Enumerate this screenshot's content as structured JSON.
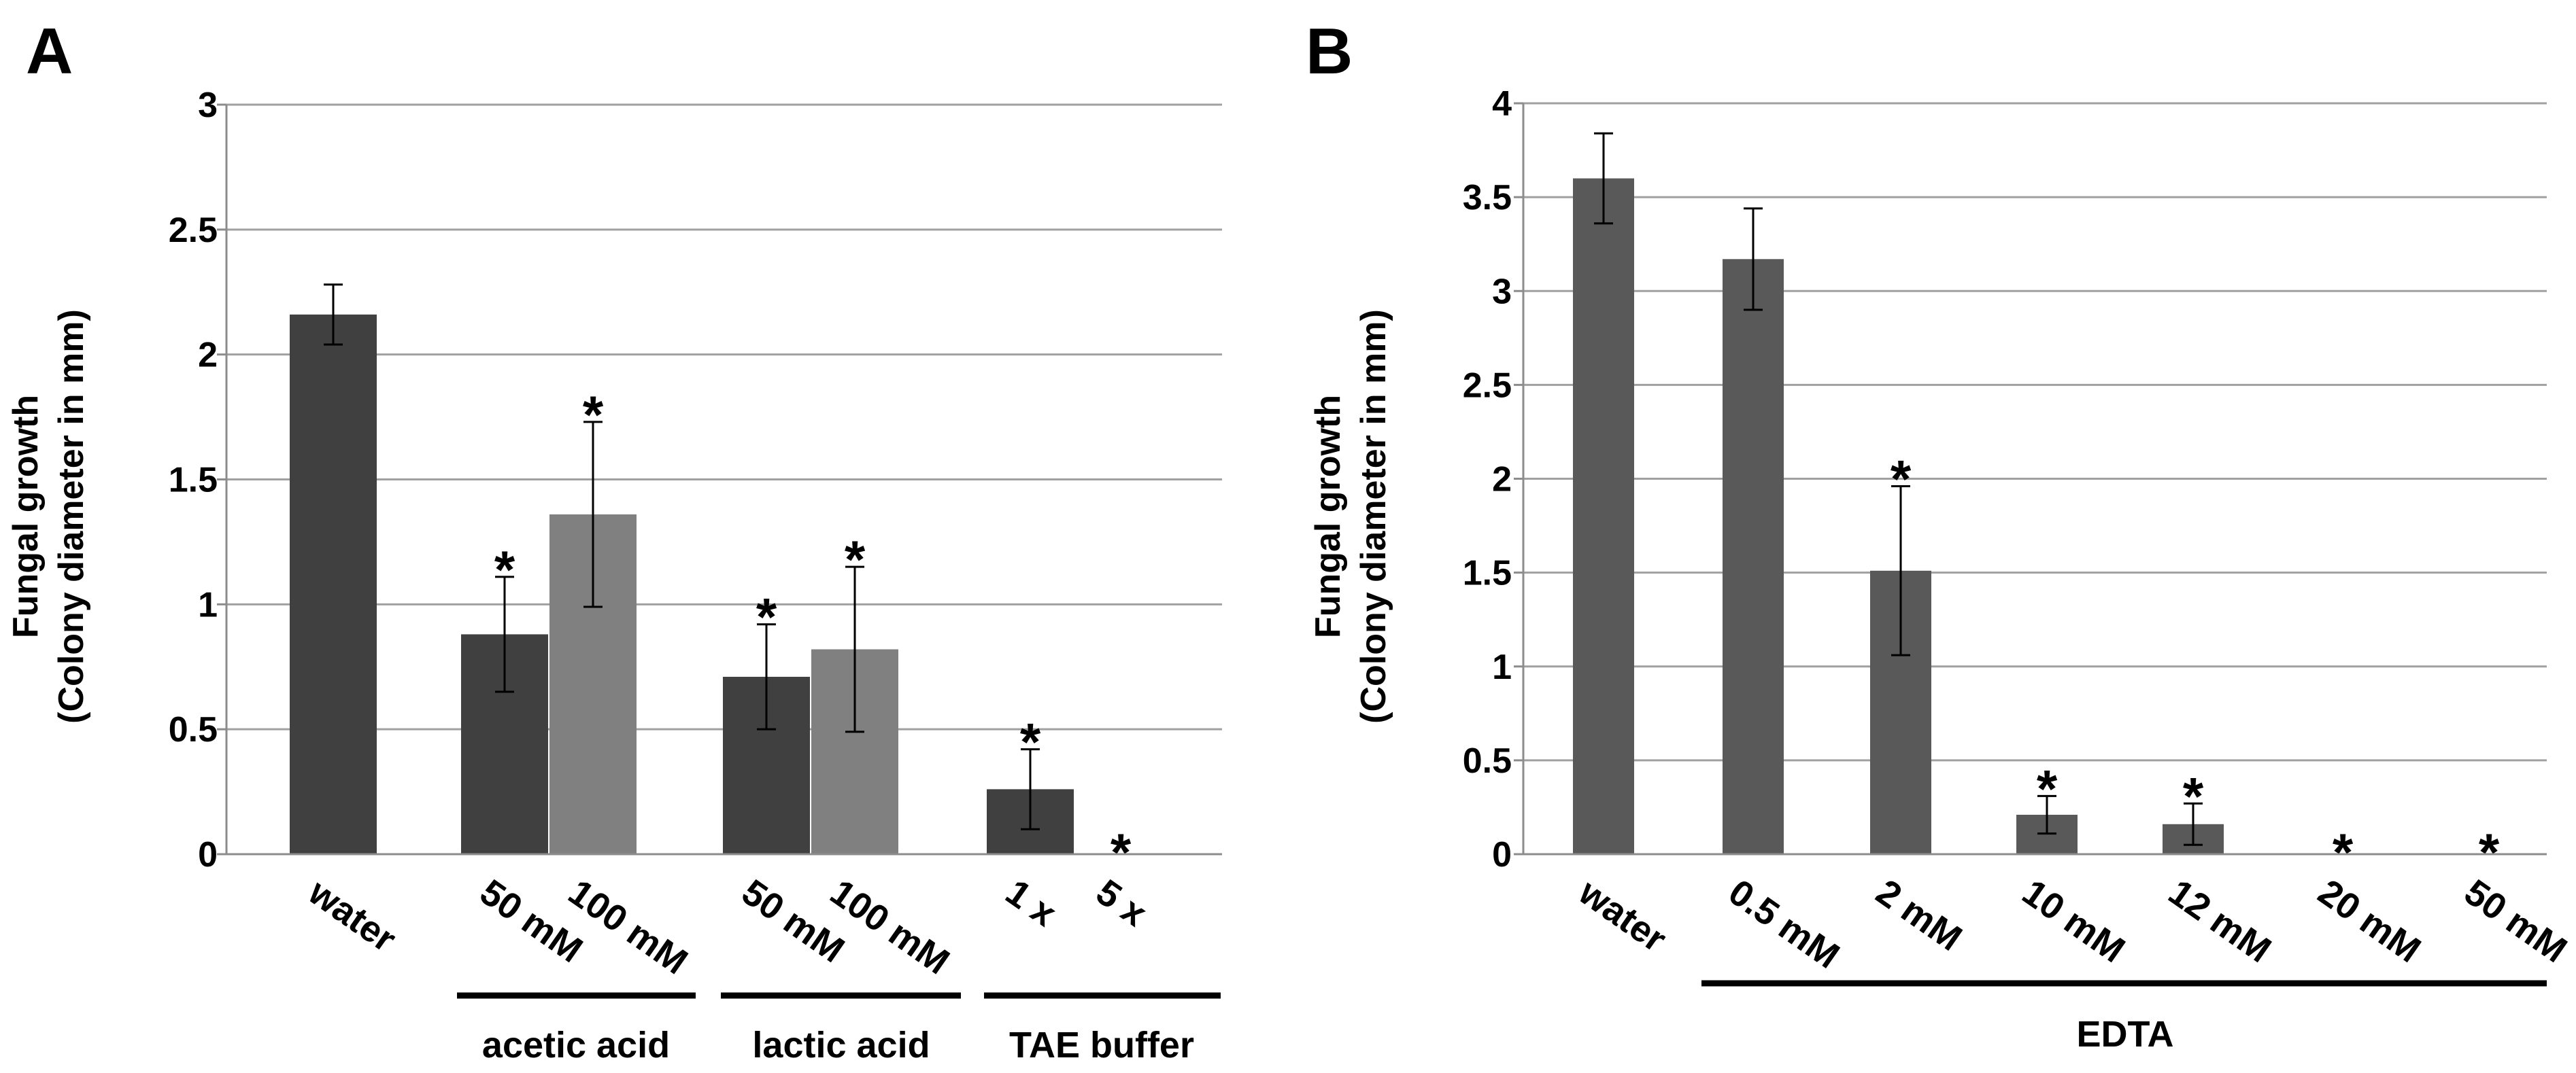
{
  "colors": {
    "dark": "#404040",
    "light": "#808080",
    "mid": "#595959",
    "grid": "#a0a0a0",
    "axis": "#8c8c8c",
    "ink": "#000000"
  },
  "chart_data": [
    {
      "type": "bar",
      "panel": "A",
      "ylabel_line1": "Fungal growth",
      "ylabel_line2": "(Colony diameter in mm)",
      "ylim": [
        0,
        3
      ],
      "yticks": [
        "0",
        "0.5",
        "1",
        "1.5",
        "2",
        "2.5",
        "3"
      ],
      "grid": true,
      "bars": [
        {
          "label": "water",
          "value": 2.16,
          "error": 0.12,
          "star": false,
          "shade": "dark"
        },
        {
          "label": "50 mM",
          "value": 0.88,
          "error": 0.23,
          "star": true,
          "shade": "dark"
        },
        {
          "label": "100 mM",
          "value": 1.36,
          "error": 0.37,
          "star": true,
          "shade": "light"
        },
        {
          "label": "50 mM",
          "value": 0.71,
          "error": 0.21,
          "star": true,
          "shade": "dark"
        },
        {
          "label": "100 mM",
          "value": 0.82,
          "error": 0.33,
          "star": true,
          "shade": "light"
        },
        {
          "label": "1 x",
          "value": 0.26,
          "error": 0.16,
          "star": true,
          "shade": "dark"
        },
        {
          "label": "5 x",
          "value": 0,
          "error": 0,
          "star": true,
          "shade": "dark"
        }
      ],
      "groups": [
        {
          "label": "acetic acid"
        },
        {
          "label": "lactic acid"
        },
        {
          "label": "TAE buffer"
        }
      ],
      "star_symbol": "*"
    },
    {
      "type": "bar",
      "panel": "B",
      "ylabel_line1": "Fungal growth",
      "ylabel_line2": "(Colony diameter in mm)",
      "ylim": [
        0,
        4
      ],
      "yticks": [
        "0",
        "0.5",
        "1",
        "1.5",
        "2",
        "2.5",
        "3",
        "3.5",
        "4"
      ],
      "grid": true,
      "bars": [
        {
          "label": "water",
          "value": 3.6,
          "error": 0.24,
          "star": false,
          "shade": "mid"
        },
        {
          "label": "0.5 mM",
          "value": 3.17,
          "error": 0.27,
          "star": false,
          "shade": "mid"
        },
        {
          "label": "2 mM",
          "value": 1.51,
          "error": 0.45,
          "star": true,
          "shade": "mid"
        },
        {
          "label": "10 mM",
          "value": 0.21,
          "error": 0.1,
          "star": true,
          "shade": "mid"
        },
        {
          "label": "12 mM",
          "value": 0.16,
          "error": 0.11,
          "star": true,
          "shade": "mid"
        },
        {
          "label": "20 mM",
          "value": 0,
          "error": 0,
          "star": true,
          "shade": "mid"
        },
        {
          "label": "50 mM",
          "value": 0,
          "error": 0,
          "star": true,
          "shade": "mid"
        }
      ],
      "groups": [
        {
          "label": "EDTA"
        }
      ],
      "star_symbol": "*"
    }
  ]
}
